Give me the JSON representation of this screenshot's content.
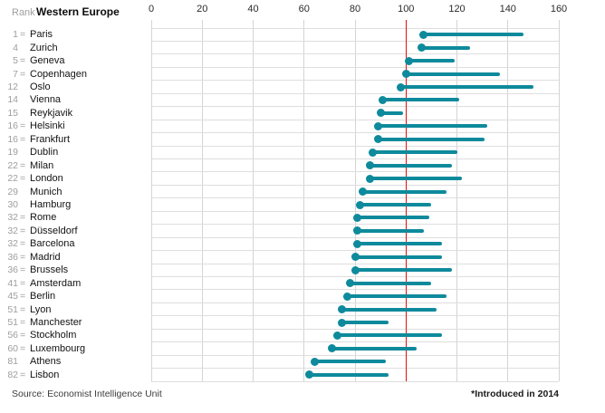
{
  "header": {
    "rank_label": "Rank",
    "region_title": "Western Europe"
  },
  "footer": {
    "source": "Source: Economist Intelligence Unit",
    "footnote": "*Introduced in 2014"
  },
  "colors": {
    "series_teal": "#0e8a9c",
    "reference_red": "#e3120b",
    "grid_gray": "#d9d9d9",
    "rank_gray": "#9e9e9e"
  },
  "chart_data": {
    "type": "scatter",
    "subtype": "dot-with-range-line",
    "title": "Western Europe",
    "xlabel": "",
    "ylabel": "",
    "xlim": [
      0,
      160
    ],
    "x_ticks": [
      0,
      20,
      40,
      60,
      80,
      100,
      120,
      140,
      160
    ],
    "reference_line_x": 100,
    "grid": true,
    "legend_position": "none",
    "series": [
      {
        "name": "index-dot",
        "role": "current value (dot at left end of line)"
      },
      {
        "name": "range-line",
        "role": "line extends from dot to historical value"
      }
    ],
    "rows": [
      {
        "rank": "1",
        "tied": true,
        "city": "Paris",
        "value": 107,
        "range_end": 146
      },
      {
        "rank": "4",
        "tied": false,
        "city": "Zurich",
        "value": 106,
        "range_end": 125
      },
      {
        "rank": "5",
        "tied": true,
        "city": "Geneva",
        "value": 101,
        "range_end": 119
      },
      {
        "rank": "7",
        "tied": true,
        "city": "Copenhagen",
        "value": 100,
        "range_end": 137
      },
      {
        "rank": "12",
        "tied": false,
        "city": "Oslo",
        "value": 98,
        "range_end": 150
      },
      {
        "rank": "14",
        "tied": false,
        "city": "Vienna",
        "value": 91,
        "range_end": 121
      },
      {
        "rank": "15",
        "tied": false,
        "city": "Reykjavik",
        "value": 90,
        "range_end": 99
      },
      {
        "rank": "16",
        "tied": true,
        "city": "Helsinki",
        "value": 89,
        "range_end": 132
      },
      {
        "rank": "16",
        "tied": true,
        "city": "Frankfurt",
        "value": 89,
        "range_end": 131
      },
      {
        "rank": "19",
        "tied": false,
        "city": "Dublin",
        "value": 87,
        "range_end": 120
      },
      {
        "rank": "22",
        "tied": true,
        "city": "Milan",
        "value": 86,
        "range_end": 118
      },
      {
        "rank": "22",
        "tied": true,
        "city": "London",
        "value": 86,
        "range_end": 122
      },
      {
        "rank": "29",
        "tied": false,
        "city": "Munich",
        "value": 83,
        "range_end": 116
      },
      {
        "rank": "30",
        "tied": false,
        "city": "Hamburg",
        "value": 82,
        "range_end": 110
      },
      {
        "rank": "32",
        "tied": true,
        "city": "Rome",
        "value": 81,
        "range_end": 109
      },
      {
        "rank": "32",
        "tied": true,
        "city": "Düsseldorf",
        "value": 81,
        "range_end": 107
      },
      {
        "rank": "32",
        "tied": true,
        "city": "Barcelona",
        "value": 81,
        "range_end": 114
      },
      {
        "rank": "36",
        "tied": true,
        "city": "Madrid",
        "value": 80,
        "range_end": 114
      },
      {
        "rank": "36",
        "tied": true,
        "city": "Brussels",
        "value": 80,
        "range_end": 118
      },
      {
        "rank": "41",
        "tied": true,
        "city": "Amsterdam",
        "value": 78,
        "range_end": 110
      },
      {
        "rank": "45",
        "tied": true,
        "city": "Berlin",
        "value": 77,
        "range_end": 116
      },
      {
        "rank": "51",
        "tied": true,
        "city": "Lyon",
        "value": 75,
        "range_end": 112
      },
      {
        "rank": "51",
        "tied": true,
        "city": "Manchester",
        "value": 75,
        "range_end": 93
      },
      {
        "rank": "56",
        "tied": true,
        "city": "Stockholm",
        "value": 73,
        "range_end": 114
      },
      {
        "rank": "60",
        "tied": true,
        "city": "Luxembourg",
        "value": 71,
        "range_end": 104
      },
      {
        "rank": "81",
        "tied": false,
        "city": "Athens",
        "value": 64,
        "range_end": 92
      },
      {
        "rank": "82",
        "tied": true,
        "city": "Lisbon",
        "value": 62,
        "range_end": 93
      }
    ]
  }
}
